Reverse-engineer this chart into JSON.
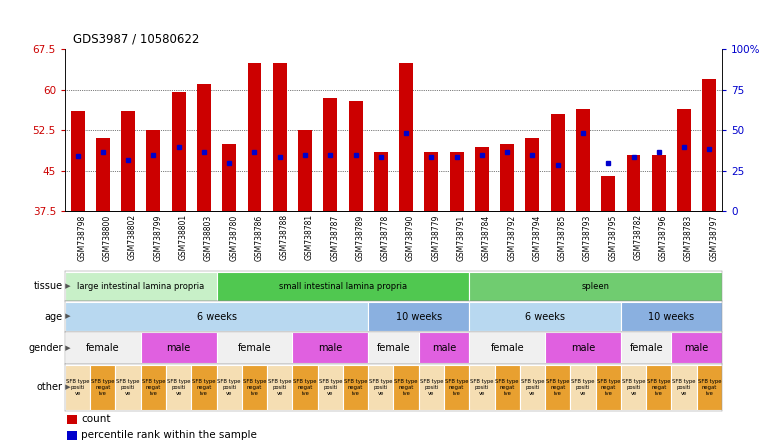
{
  "title": "GDS3987 / 10580622",
  "samples": [
    "GSM738798",
    "GSM738800",
    "GSM738802",
    "GSM738799",
    "GSM738801",
    "GSM738803",
    "GSM738780",
    "GSM738786",
    "GSM738788",
    "GSM738781",
    "GSM738787",
    "GSM738789",
    "GSM738778",
    "GSM738790",
    "GSM738779",
    "GSM738791",
    "GSM738784",
    "GSM738792",
    "GSM738794",
    "GSM738785",
    "GSM738793",
    "GSM738795",
    "GSM738782",
    "GSM738796",
    "GSM738783",
    "GSM738797"
  ],
  "bar_heights": [
    56.0,
    51.0,
    56.0,
    52.5,
    59.5,
    61.0,
    50.0,
    65.0,
    65.0,
    52.5,
    58.5,
    58.0,
    48.5,
    65.0,
    48.5,
    48.5,
    49.5,
    50.0,
    51.0,
    55.5,
    56.5,
    44.0,
    48.0,
    48.0,
    56.5,
    62.0
  ],
  "blue_markers": [
    47.8,
    48.5,
    47.0,
    48.0,
    49.5,
    48.5,
    46.5,
    48.5,
    47.5,
    48.0,
    48.0,
    48.0,
    47.5,
    52.0,
    47.5,
    47.5,
    48.0,
    48.5,
    48.0,
    46.0,
    52.0,
    46.5,
    47.5,
    48.5,
    49.5,
    49.0
  ],
  "ymin": 37.5,
  "ymax": 67.5,
  "yticks_left": [
    37.5,
    45.0,
    52.5,
    60.0,
    67.5
  ],
  "yticks_right": [
    0,
    25,
    50,
    75,
    100
  ],
  "bar_color": "#cc0000",
  "marker_color": "#0000cc",
  "tissue_groups": [
    {
      "label": "large intestinal lamina propria",
      "start": 0,
      "end": 6,
      "color": "#c8f0c8"
    },
    {
      "label": "small intestinal lamina propria",
      "start": 6,
      "end": 16,
      "color": "#50c850"
    },
    {
      "label": "spleen",
      "start": 16,
      "end": 26,
      "color": "#70cc70"
    }
  ],
  "age_groups": [
    {
      "label": "6 weeks",
      "start": 0,
      "end": 12,
      "color": "#b8d8f0"
    },
    {
      "label": "10 weeks",
      "start": 12,
      "end": 16,
      "color": "#8ab0e0"
    },
    {
      "label": "6 weeks",
      "start": 16,
      "end": 22,
      "color": "#b8d8f0"
    },
    {
      "label": "10 weeks",
      "start": 22,
      "end": 26,
      "color": "#8ab0e0"
    }
  ],
  "gender_groups": [
    {
      "label": "female",
      "start": 0,
      "end": 3,
      "color": "#f0f0f0"
    },
    {
      "label": "male",
      "start": 3,
      "end": 6,
      "color": "#e060e0"
    },
    {
      "label": "female",
      "start": 6,
      "end": 9,
      "color": "#f0f0f0"
    },
    {
      "label": "male",
      "start": 9,
      "end": 12,
      "color": "#e060e0"
    },
    {
      "label": "female",
      "start": 12,
      "end": 14,
      "color": "#f0f0f0"
    },
    {
      "label": "male",
      "start": 14,
      "end": 16,
      "color": "#e060e0"
    },
    {
      "label": "female",
      "start": 16,
      "end": 19,
      "color": "#f0f0f0"
    },
    {
      "label": "male",
      "start": 19,
      "end": 22,
      "color": "#e060e0"
    },
    {
      "label": "female",
      "start": 22,
      "end": 24,
      "color": "#f0f0f0"
    },
    {
      "label": "male",
      "start": 24,
      "end": 26,
      "color": "#e060e0"
    }
  ],
  "other_pos_color": "#f5deb3",
  "other_neg_color": "#e8a030",
  "row_labels": [
    "tissue",
    "age",
    "gender",
    "other"
  ],
  "legend_count_color": "#cc0000",
  "legend_pct_color": "#0000cc"
}
